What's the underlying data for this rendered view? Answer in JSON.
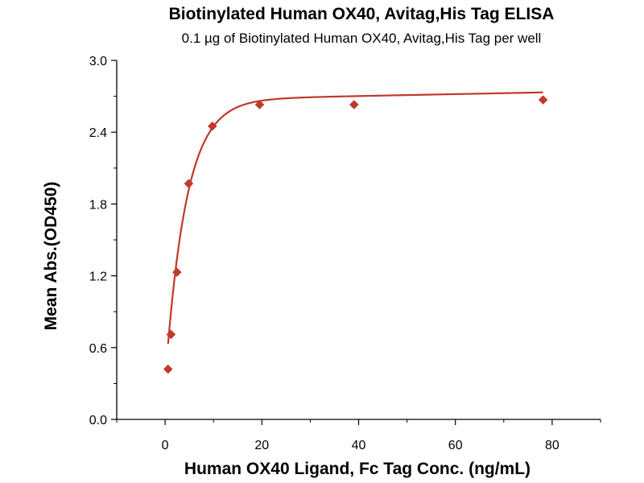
{
  "chart_data": {
    "type": "scatter",
    "title": "Biotinylated Human OX40, Avitag,His Tag ELISA",
    "subtitle": "0.1 µg of Biotinylated Human OX40, Avitag,His Tag per well",
    "xlabel": "Human OX40 Ligand, Fc Tag Conc. (ng/mL)",
    "ylabel": "Mean Abs.(OD450)",
    "xlim": [
      -10,
      90
    ],
    "ylim": [
      0,
      3
    ],
    "xticks": [
      "0",
      "20",
      "40",
      "60",
      "80"
    ],
    "xtick_values": [
      0,
      20,
      40,
      60,
      80
    ],
    "yticks": [
      "0.0",
      "0.6",
      "1.2",
      "1.8",
      "2.4",
      "3.0"
    ],
    "ytick_values": [
      0,
      0.6,
      1.2,
      1.8,
      2.4,
      3.0
    ],
    "grid": false,
    "x": [
      0.61,
      1.22,
      2.44,
      4.88,
      9.77,
      19.53,
      39.06,
      78.13
    ],
    "y": [
      0.42,
      0.71,
      1.23,
      1.97,
      2.45,
      2.63,
      2.63,
      2.67
    ],
    "curve_fit": true,
    "colors": {
      "series": "#c0392b",
      "axis": "#000000"
    }
  }
}
